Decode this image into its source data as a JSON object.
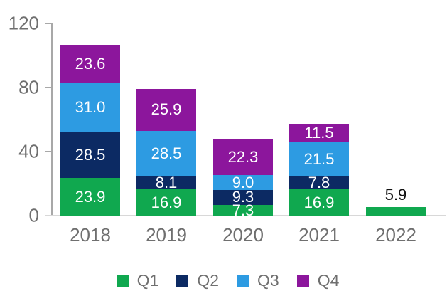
{
  "chart_data": {
    "type": "bar",
    "stacked": true,
    "title": "",
    "categories": [
      "2018",
      "2019",
      "2020",
      "2021",
      "2022"
    ],
    "series": [
      {
        "name": "Q1",
        "color": "#10A84F",
        "values": [
          23.9,
          16.9,
          7.3,
          16.9,
          5.9
        ]
      },
      {
        "name": "Q2",
        "color": "#0C2A63",
        "values": [
          28.5,
          8.1,
          9.3,
          7.8,
          null
        ]
      },
      {
        "name": "Q3",
        "color": "#2D9BE2",
        "values": [
          31.0,
          28.5,
          9.0,
          21.5,
          null
        ]
      },
      {
        "name": "Q4",
        "color": "#8C169C",
        "values": [
          23.6,
          25.9,
          22.3,
          11.5,
          null
        ]
      }
    ],
    "totals": [
      107.0,
      79.4,
      47.9,
      57.7,
      5.9
    ],
    "yticks": [
      0,
      40,
      80,
      120
    ],
    "ylim": [
      0,
      120
    ],
    "xlabel": "",
    "ylabel": "",
    "grid": false,
    "value_labels": true,
    "value_label_decimals": 1,
    "outside_labels": [
      {
        "category": "2022",
        "series": "Q1",
        "color": "#111111"
      }
    ],
    "legend_position": "bottom",
    "legend_entries": [
      "Q1",
      "Q2",
      "Q3",
      "Q4"
    ]
  },
  "colors": {
    "q1_green": "#10A84F",
    "q2_navy": "#0C2A63",
    "q3_blue": "#2D9BE2",
    "q4_purple": "#8C169C",
    "axis_text": "#6F6F6F",
    "axis_line": "#A8A8A8",
    "baseline": "#D8D8D8",
    "inside_label_text": "#FFFFFF",
    "outside_label_text": "#111111",
    "background": "#FFFFFF"
  }
}
